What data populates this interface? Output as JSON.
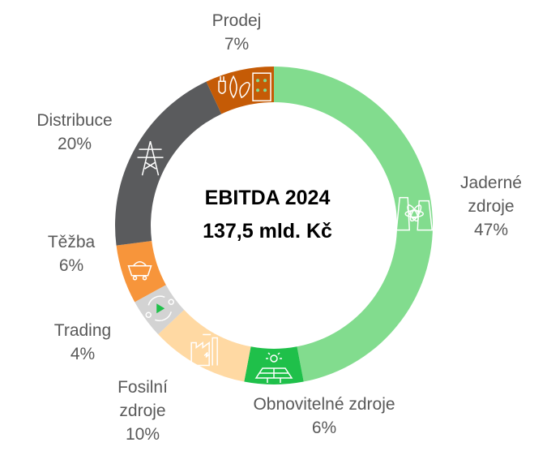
{
  "chart_data": {
    "type": "pie",
    "center_text": [
      "EBITDA 2024",
      "137,5 mld. Kč"
    ],
    "slices": [
      {
        "label": [
          "Jaderné",
          "zdroje"
        ],
        "value": 47,
        "value_label": "47%",
        "color": "#82dc8e",
        "icon": "nuclear-plant-icon"
      },
      {
        "label": [
          "Obnovitelné zdroje"
        ],
        "value": 6,
        "value_label": "6%",
        "color": "#1fc04a",
        "icon": "solar-panel-icon"
      },
      {
        "label": [
          "Fosilní",
          "zdroje"
        ],
        "value": 10,
        "value_label": "10%",
        "color": "#ffd9a3",
        "icon": "factory-icon"
      },
      {
        "label": [
          "Trading"
        ],
        "value": 4,
        "value_label": "4%",
        "color": "#d3d3d3",
        "icon": "trading-cycle-icon"
      },
      {
        "label": [
          "Těžba"
        ],
        "value": 6,
        "value_label": "6%",
        "color": "#f7953b",
        "icon": "mine-cart-icon"
      },
      {
        "label": [
          "Distribuce"
        ],
        "value": 20,
        "value_label": "20%",
        "color": "#5a5b5d",
        "icon": "power-pylon-icon"
      },
      {
        "label": [
          "Prodej"
        ],
        "value": 7,
        "value_label": "7%",
        "color": "#c55b06",
        "icon": "plug-leaf-icon"
      }
    ],
    "legend": "none"
  }
}
